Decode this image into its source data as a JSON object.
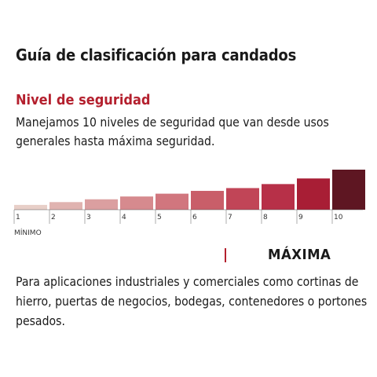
{
  "title": "Guía de clasificación para candados",
  "security": {
    "heading": "Nivel de seguridad",
    "intro": "Manejamos 10 niveles de seguridad que van desde usos generales hasta máxima seguridad."
  },
  "scale": {
    "levels": [
      "1",
      "2",
      "3",
      "4",
      "5",
      "6",
      "7",
      "8",
      "9",
      "10"
    ],
    "heights": [
      0.12,
      0.19,
      0.26,
      0.33,
      0.4,
      0.47,
      0.54,
      0.64,
      0.78,
      1.0
    ],
    "colors": [
      "#e8cfc8",
      "#e0b3b0",
      "#db9fa0",
      "#d68a8e",
      "#d1767e",
      "#c95e69",
      "#c14557",
      "#b73048",
      "#a81e35",
      "#5e1622"
    ],
    "min_label": "MÍNIMO"
  },
  "level_detail": {
    "label": "MÁXIMA",
    "accent_color": "#b4202e",
    "description": "Para aplicaciones industriales y comerciales como cortinas de hierro, puertas de negocios, bodegas, contenedores o portones pesados."
  }
}
